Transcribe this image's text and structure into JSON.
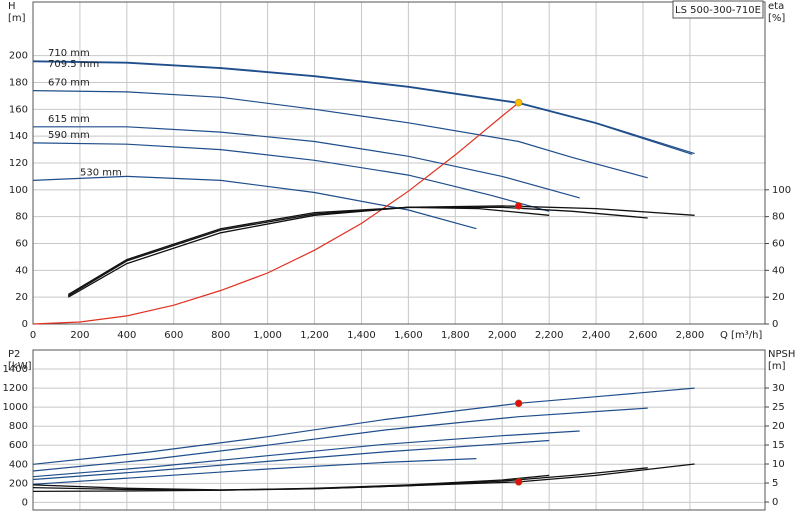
{
  "chart_data": [
    {
      "type": "line",
      "title": "LS 500-300-710E",
      "xlabel": "Q [m³/h]",
      "ylabel": [
        "H",
        "[m]"
      ],
      "y2label": [
        "eta",
        "[%]"
      ],
      "xlim": [
        0,
        3120
      ],
      "xticks": [
        0,
        200,
        400,
        600,
        800,
        {
          "value": 1000,
          "label": "1,000"
        },
        {
          "value": 1200,
          "label": "1,200"
        },
        {
          "value": 1400,
          "label": "1,400"
        },
        {
          "value": 1600,
          "label": "1,600"
        },
        {
          "value": 1800,
          "label": "1,800"
        },
        {
          "value": 2000,
          "label": "2,000"
        },
        {
          "value": 2200,
          "label": "2,200"
        },
        {
          "value": 2400,
          "label": "2,400"
        },
        {
          "value": 2600,
          "label": "2,600"
        },
        {
          "value": 2800,
          "label": "2,800"
        }
      ],
      "ylim": [
        0,
        240
      ],
      "yticks": [
        0,
        20,
        40,
        60,
        80,
        100,
        120,
        140,
        160,
        180,
        200
      ],
      "y2lim": [
        0,
        240
      ],
      "y2ticks": [
        0,
        20,
        40,
        60,
        80,
        100
      ],
      "grid": true,
      "series": [
        {
          "name": "710 mm",
          "color": "#1f4e8c",
          "x": [
            0,
            400,
            800,
            1200,
            1600,
            2070,
            2400,
            2820
          ],
          "values": [
            196,
            195,
            191,
            185,
            177,
            165,
            150,
            127
          ]
        },
        {
          "name": "709.5 mm",
          "color": "#1f4e8c",
          "x": [
            0,
            400,
            800,
            1200,
            1600,
            2070,
            2400,
            2810
          ],
          "values": [
            195.5,
            194.5,
            190.5,
            184.5,
            176.5,
            164.5,
            149.5,
            126.5
          ]
        },
        {
          "name": "670 mm",
          "color": "#1f4e8c",
          "x": [
            0,
            400,
            800,
            1200,
            1600,
            2070,
            2300,
            2620
          ],
          "values": [
            174,
            173,
            169,
            160,
            150,
            136,
            124,
            109
          ]
        },
        {
          "name": "615 mm",
          "color": "#1f4e8c",
          "x": [
            0,
            400,
            800,
            1200,
            1600,
            2000,
            2330
          ],
          "values": [
            147,
            147,
            143,
            136,
            125,
            110,
            94
          ]
        },
        {
          "name": "590 mm",
          "color": "#1f4e8c",
          "x": [
            0,
            400,
            800,
            1200,
            1600,
            1950,
            2200
          ],
          "values": [
            135,
            134,
            130,
            122,
            111,
            96,
            84
          ]
        },
        {
          "name": "530 mm",
          "color": "#1f4e8c",
          "x": [
            0,
            400,
            800,
            1200,
            1600,
            1890
          ],
          "values": [
            107,
            110,
            107,
            98,
            85,
            71
          ]
        },
        {
          "color": "#e03020",
          "x": [
            0,
            200,
            400,
            600,
            800,
            1000,
            1200,
            1400,
            1600,
            1800,
            2000,
            2070
          ],
          "values": [
            0,
            1.5,
            6,
            14,
            25,
            38,
            55,
            75,
            99,
            126,
            155,
            165
          ]
        },
        {
          "color": "#111111",
          "axis": "y2",
          "x": [
            150,
            400,
            800,
            1200,
            1600,
            2000,
            2400,
            2820
          ],
          "values": [
            20,
            45,
            68,
            81,
            87,
            88,
            86,
            81
          ]
        },
        {
          "color": "#111111",
          "axis": "y2",
          "x": [
            150,
            400,
            800,
            1200,
            1600,
            2000,
            2300,
            2620
          ],
          "values": [
            21,
            47,
            70,
            82,
            87,
            87,
            84,
            79
          ]
        },
        {
          "color": "#111111",
          "axis": "y2",
          "x": [
            150,
            400,
            800,
            1200,
            1600,
            1900,
            2200
          ],
          "values": [
            22,
            48,
            71,
            83,
            87,
            86,
            81
          ]
        },
        {
          "type": "scatter",
          "color": "#ffc000",
          "x": [
            2070
          ],
          "values": [
            165
          ]
        },
        {
          "type": "scatter",
          "color": "#e01010",
          "axis": "y2",
          "x": [
            2070
          ],
          "values": [
            88
          ]
        }
      ]
    },
    {
      "type": "line",
      "ylabel": [
        "P2",
        "[kW]"
      ],
      "y2label": [
        "NPSH",
        "[m]"
      ],
      "xlim": [
        0,
        3120
      ],
      "xticks": [
        0,
        200,
        400,
        600,
        800,
        1000,
        1200,
        1400,
        1600,
        1800,
        2000,
        2200,
        2400,
        2600,
        2800
      ],
      "ylim": [
        -80,
        1600
      ],
      "yticks": [
        0,
        200,
        400,
        600,
        800,
        1000,
        1200,
        1400
      ],
      "y2lim": [
        -2.1,
        40
      ],
      "y2ticks": [
        0,
        5,
        10,
        15,
        20,
        25,
        30
      ],
      "grid": true,
      "series": [
        {
          "color": "#1f4e8c",
          "x": [
            0,
            500,
            1000,
            1500,
            2070,
            2400,
            2820
          ],
          "values": [
            400,
            530,
            690,
            870,
            1040,
            1110,
            1200
          ]
        },
        {
          "color": "#1f4e8c",
          "x": [
            0,
            500,
            1000,
            1500,
            2070,
            2620
          ],
          "values": [
            330,
            450,
            600,
            760,
            900,
            990
          ]
        },
        {
          "color": "#1f4e8c",
          "x": [
            0,
            500,
            1000,
            1500,
            2000,
            2330
          ],
          "values": [
            270,
            370,
            490,
            610,
            700,
            750
          ]
        },
        {
          "color": "#1f4e8c",
          "x": [
            0,
            500,
            1000,
            1500,
            2200
          ],
          "values": [
            240,
            330,
            430,
            530,
            650
          ]
        },
        {
          "color": "#1f4e8c",
          "x": [
            0,
            500,
            1000,
            1500,
            1890
          ],
          "values": [
            190,
            270,
            350,
            420,
            460
          ]
        },
        {
          "color": "#111111",
          "axis": "y2",
          "x": [
            0,
            400,
            800,
            1200,
            1600,
            2070,
            2400,
            2820
          ],
          "values": [
            4.5,
            3.6,
            3.2,
            3.5,
            4.3,
            5.3,
            7,
            10
          ]
        },
        {
          "color": "#111111",
          "axis": "y2",
          "x": [
            0,
            400,
            800,
            1200,
            1600,
            2000,
            2300,
            2620
          ],
          "values": [
            3.8,
            3.3,
            3.1,
            3.5,
            4.3,
            5.5,
            7,
            9
          ]
        },
        {
          "color": "#111111",
          "axis": "y2",
          "x": [
            0,
            400,
            800,
            1200,
            1600,
            2000,
            2200
          ],
          "values": [
            2.8,
            2.9,
            3.1,
            3.6,
            4.5,
            5.8,
            7
          ]
        },
        {
          "type": "scatter",
          "color": "#e01010",
          "x": [
            2070
          ],
          "values": [
            1040
          ]
        },
        {
          "type": "scatter",
          "color": "#e01010",
          "axis": "y2",
          "x": [
            2070
          ],
          "values": [
            5.3
          ]
        }
      ]
    }
  ]
}
